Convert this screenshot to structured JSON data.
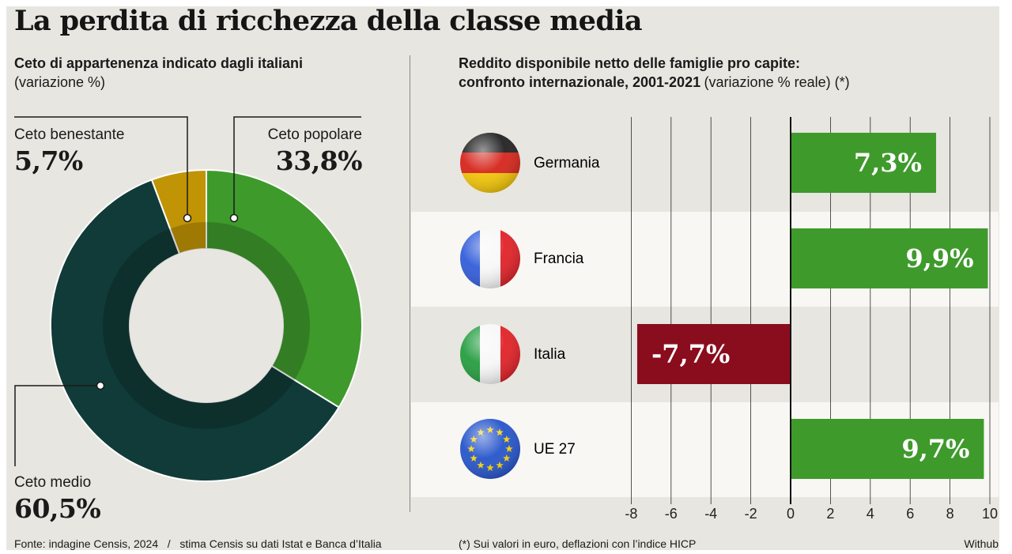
{
  "title": "La perdita di ricchezza della classe media",
  "left_panel": {
    "subtitle_bold": "Ceto di appartenenza indicato dagli italiani",
    "subtitle_light": "(variazione %)"
  },
  "right_panel": {
    "subtitle_line1": "Reddito disponibile netto delle famiglie pro capite:",
    "subtitle_line2_bold": "confronto internazionale, 2001-2021",
    "subtitle_line2_light": "(variazione % reale) (*)"
  },
  "colors": {
    "background": "#e7e6e0",
    "popolare": "#3f9a2c",
    "medio": "#103b38",
    "benestante": "#c19406",
    "positive_bar": "#3f9a2c",
    "negative_bar": "#8a0d1d",
    "band": "#f8f7f4"
  },
  "chart_data": [
    {
      "type": "pie",
      "donut": true,
      "labels": [
        "Ceto popolare",
        "Ceto medio",
        "Ceto benestante"
      ],
      "values": [
        33.8,
        60.5,
        5.7
      ],
      "value_labels": [
        "33,8%",
        "60,5%",
        "5,7%"
      ]
    },
    {
      "type": "bar",
      "orientation": "horizontal",
      "categories": [
        "Germania",
        "Francia",
        "Italia",
        "UE 27"
      ],
      "icons": [
        "germany-flag-icon",
        "france-flag-icon",
        "italy-flag-icon",
        "eu-flag-icon"
      ],
      "values": [
        7.3,
        9.9,
        -7.7,
        9.7
      ],
      "value_labels": [
        "7,3%",
        "9,9%",
        "-7,7%",
        "9,7%"
      ],
      "xlim": [
        -8,
        10
      ],
      "xticks": [
        -8,
        -6,
        -4,
        -2,
        0,
        2,
        4,
        6,
        8,
        10
      ],
      "grid": true
    }
  ],
  "footer": {
    "source": "Fonte: indagine Censis, 2024",
    "separator": "/",
    "estimate": "stima Censis su dati Istat e Banca d’Italia",
    "note": "(*) Sui valori in euro, deflazioni con l’indice HICP",
    "credit": "Withub"
  }
}
